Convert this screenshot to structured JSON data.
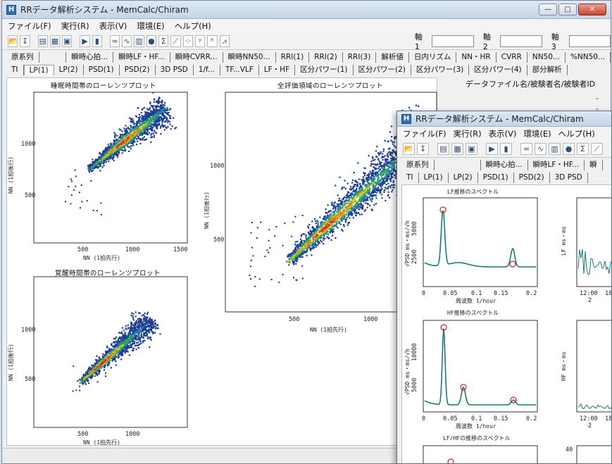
{
  "app": {
    "title": "RRデータ解析システム - MemCalc/Chiram",
    "icon_letter": "H"
  },
  "window_controls": {
    "minimize": "—",
    "maximize": "□",
    "close": "✕"
  },
  "menu": [
    "ファイル(F)",
    "実行(R)",
    "表示(V)",
    "環境(E)",
    "ヘルプ(H)"
  ],
  "toolbar": {
    "axis1": "軸 1",
    "axis2": "軸 2",
    "axis3": "軸 3",
    "icons": [
      "open-icon",
      "save-icon",
      "print-icon",
      "print-preview-icon",
      "export-icon",
      "play-icon",
      "stop-icon",
      "waveform-icon",
      "wave-icon",
      "chart-icon",
      "globe-icon",
      "sd-icon",
      "trend-icon",
      "scatter-icon",
      "tf-icon",
      "lh-icon",
      "spectrum-icon"
    ]
  },
  "tabs_row1": [
    "原系列",
    "",
    "瞬時心拍...",
    "瞬時LF・HF...",
    "瞬時CVRR...",
    "瞬時NN50...",
    "RRI(1)",
    "RRI(2)",
    "RRI(3)",
    "解析値",
    "日内リズム",
    "NN・HR",
    "CVRR",
    "NN50...",
    "%NN50..."
  ],
  "tabs_row2": [
    "TI",
    "LP(1)",
    "LP(2)",
    "PSD(1)",
    "PSD(2)",
    "3D PSD",
    "1/f...",
    "TF...VLF",
    "LF・HF",
    "区分パワー(1)",
    "区分パワー(2)",
    "区分パワー(3)",
    "区分パワー(4)",
    "部分解析"
  ],
  "info": {
    "datafile": "データファイル名/被験者名/被験者ID",
    "dash": "-"
  },
  "plots": {
    "sleep": {
      "title": "睡眠時間帯のローレンツプロット",
      "xlabel": "NN (1拍先行)",
      "ylabel": "NN (1拍後行)",
      "xticks": [
        "500",
        "1000",
        "1500"
      ],
      "yticks": [
        "500",
        "1000"
      ]
    },
    "all": {
      "title": "全評価領域のローレンツプロット",
      "xlabel": "NN (1拍先行)",
      "ylabel": "NN (1拍後行)",
      "xticks": [
        "500",
        "1000"
      ],
      "yticks": [
        "500",
        "1000"
      ]
    },
    "awake": {
      "title": "覚醒時間帯のローレンツプロット",
      "xlabel": "NN (1拍先行)",
      "ylabel": "NN (1拍後行)",
      "xticks": [
        "500",
        "1000"
      ],
      "yticks": [
        "500",
        "1000"
      ]
    }
  },
  "window2": {
    "title": "RRデータ解析システム - MemCalc/Chiram",
    "menu": [
      "ファイル(F)",
      "実行(R)",
      "表示(V)",
      "環境(E)",
      "ヘルプ(H)"
    ],
    "tabs_row1": [
      "原系列",
      "",
      "瞬時心拍...",
      "瞬時LF・HF...",
      "瞬"
    ],
    "tabs_row2": [
      "TI",
      "LP(1)",
      "LP(2)",
      "PSD(1)",
      "PSD(2)",
      "3D PSD"
    ],
    "lf": {
      "title": "LF推移のスペクトル",
      "ylabel": "√PSD ms・ms/√h",
      "xlabel": "周波数 1/hour",
      "yticks": [
        "2500",
        "5000"
      ],
      "xticks": [
        "0",
        "0.05",
        "0.1",
        "0.15",
        "0.2"
      ]
    },
    "hf": {
      "title": "HF推移のスペクトル",
      "ylabel": "√PSD ms・ms/√h",
      "xlabel": "周波数 1/hour",
      "yticks": [
        "5000",
        "10000"
      ],
      "xticks": [
        "0",
        "0.05",
        "0.1",
        "0.15",
        "0.2"
      ]
    },
    "lfhf": {
      "title": "LF/HFの推移のスペクトル"
    },
    "lf_trend": {
      "ylabel": "LF ms・ms",
      "xticks": [
        "12:00",
        "18"
      ],
      "sub": "2"
    },
    "hf_trend": {
      "ylabel": "HF ms・ms",
      "xticks": [
        "12:00",
        "18"
      ],
      "sub": "2"
    },
    "bottom_tick": "40"
  }
}
